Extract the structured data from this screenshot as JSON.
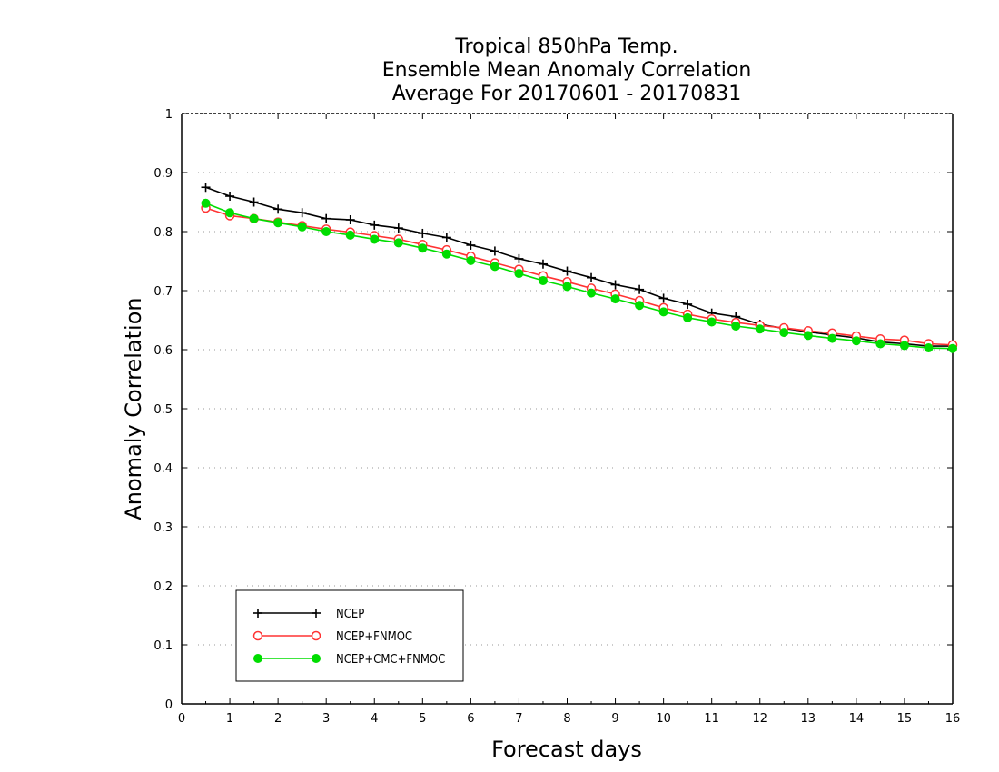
{
  "chart_data": {
    "type": "line",
    "title": [
      "Tropical 850hPa Temp.",
      "Ensemble Mean Anomaly Correlation",
      "Average For 20170601 - 20170831"
    ],
    "xlabel": "Forecast days",
    "ylabel": "Anomaly Correlation",
    "xlim": [
      0,
      16
    ],
    "ylim": [
      0,
      1
    ],
    "xticks": [
      0,
      1,
      2,
      3,
      4,
      5,
      6,
      7,
      8,
      9,
      10,
      11,
      12,
      13,
      14,
      15,
      16
    ],
    "yticks": [
      0,
      0.1,
      0.2,
      0.3,
      0.4,
      0.5,
      0.6,
      0.7,
      0.8,
      0.9,
      1
    ],
    "ytick_labels": [
      "0",
      "0.1",
      "0.2",
      "0.3",
      "0.4",
      "0.5",
      "0.6",
      "0.7",
      "0.8",
      "0.9",
      "1"
    ],
    "grid": true,
    "legend_position": "bottom-left",
    "x": [
      0.5,
      1,
      1.5,
      2,
      2.5,
      3,
      3.5,
      4,
      4.5,
      5,
      5.5,
      6,
      6.5,
      7,
      7.5,
      8,
      8.5,
      9,
      9.5,
      10,
      10.5,
      11,
      11.5,
      12,
      12.5,
      13,
      13.5,
      14,
      14.5,
      15,
      15.5,
      16
    ],
    "series": [
      {
        "name": "NCEP",
        "color": "#000000",
        "marker": "plus",
        "values": [
          0.875,
          0.86,
          0.85,
          0.838,
          0.832,
          0.822,
          0.82,
          0.811,
          0.806,
          0.797,
          0.79,
          0.777,
          0.767,
          0.754,
          0.745,
          0.733,
          0.722,
          0.71,
          0.702,
          0.687,
          0.677,
          0.662,
          0.656,
          0.643,
          0.636,
          0.63,
          0.625,
          0.62,
          0.613,
          0.61,
          0.606,
          0.606
        ]
      },
      {
        "name": "NCEP+FNMOC",
        "color": "#ff3333",
        "marker": "open-circle",
        "values": [
          0.84,
          0.827,
          0.822,
          0.816,
          0.81,
          0.804,
          0.799,
          0.793,
          0.787,
          0.778,
          0.769,
          0.758,
          0.747,
          0.736,
          0.725,
          0.715,
          0.704,
          0.694,
          0.683,
          0.671,
          0.66,
          0.652,
          0.646,
          0.641,
          0.637,
          0.632,
          0.628,
          0.623,
          0.618,
          0.616,
          0.61,
          0.608
        ]
      },
      {
        "name": "NCEP+CMC+FNMOC",
        "color": "#00dd00",
        "marker": "filled-circle",
        "values": [
          0.848,
          0.832,
          0.822,
          0.815,
          0.808,
          0.8,
          0.794,
          0.787,
          0.781,
          0.772,
          0.762,
          0.751,
          0.741,
          0.729,
          0.717,
          0.707,
          0.696,
          0.686,
          0.675,
          0.664,
          0.654,
          0.647,
          0.64,
          0.635,
          0.629,
          0.624,
          0.619,
          0.615,
          0.61,
          0.607,
          0.603,
          0.602
        ]
      }
    ]
  }
}
